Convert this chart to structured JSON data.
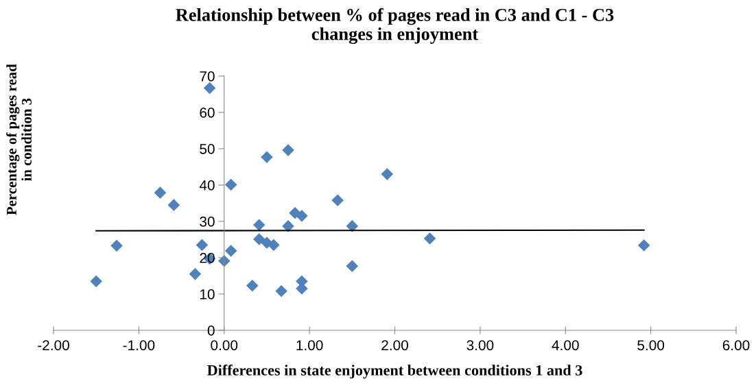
{
  "chart_data": {
    "type": "scatter",
    "title": "Relationship between % of pages read in C3 and C1 - C3\nchanges in enjoyment",
    "xlabel": "Differences in state enjoyment between conditions 1 and 3",
    "ylabel": "Percentage of pages read\nin condition 3",
    "series": [
      {
        "color": "#4f81bd",
        "marker": "diamond",
        "x": [
          -1.5,
          -1.26,
          -0.75,
          -0.59,
          -0.17,
          -0.26,
          -0.17,
          -0.34,
          0.0,
          0.08,
          0.08,
          0.33,
          0.41,
          0.41,
          0.5,
          0.58,
          0.5,
          0.75,
          0.75,
          0.83,
          0.91,
          0.67,
          0.91,
          0.91,
          1.33,
          1.5,
          1.5,
          1.91,
          2.41,
          4.92
        ],
        "values": [
          13.5,
          23.3,
          37.9,
          34.5,
          66.7,
          23.5,
          19.7,
          15.5,
          19.1,
          21.9,
          40.1,
          12.3,
          29.0,
          25.1,
          24.1,
          23.5,
          47.7,
          49.6,
          28.7,
          32.3,
          31.5,
          10.8,
          13.5,
          11.5,
          35.8,
          28.7,
          17.7,
          43.0,
          25.3,
          23.4
        ]
      },
      {
        "type": "line",
        "color": "#000000",
        "x": [
          -1.5,
          4.92
        ],
        "values": [
          27.4,
          27.6
        ]
      }
    ],
    "xlim": [
      -2,
      6
    ],
    "xticks": [
      {
        "value": -2,
        "label": "-2.00"
      },
      {
        "value": -1,
        "label": "-1.00"
      },
      {
        "value": 0,
        "label": "0.00"
      },
      {
        "value": 1,
        "label": "1.00"
      },
      {
        "value": 2,
        "label": "2.00"
      },
      {
        "value": 3,
        "label": "3.00"
      },
      {
        "value": 4,
        "label": "4.00"
      },
      {
        "value": 5,
        "label": "5.00"
      },
      {
        "value": 6,
        "label": "6.00"
      }
    ],
    "ylim": [
      0,
      70
    ],
    "yticks": [
      0,
      10,
      20,
      30,
      40,
      50,
      60,
      70
    ],
    "grid": false,
    "legend": false
  }
}
